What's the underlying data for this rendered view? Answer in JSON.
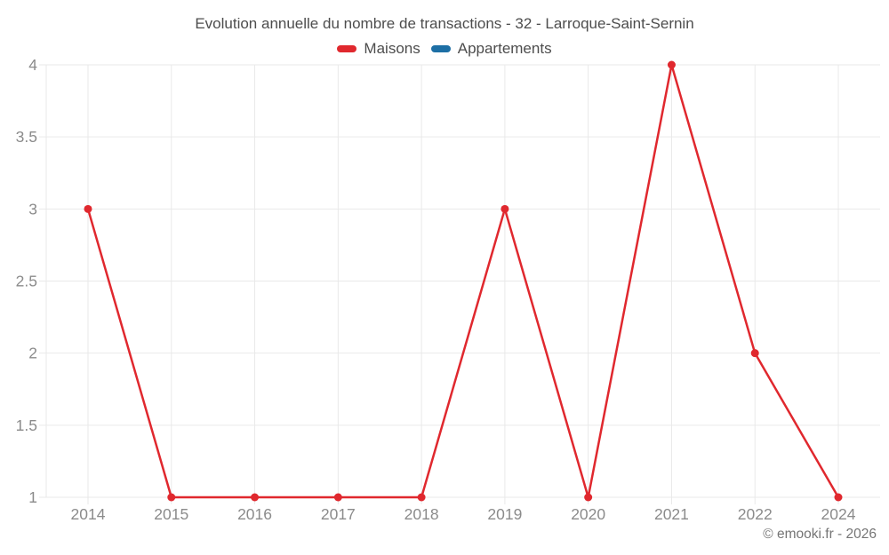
{
  "title": "Evolution annuelle du nombre de transactions - 32 - Larroque-Saint-Sernin",
  "watermark": "© emooki.fr - 2026",
  "legend": [
    {
      "label": "Maisons",
      "color": "#e0282e"
    },
    {
      "label": "Appartements",
      "color": "#1d6fa5"
    }
  ],
  "chart_data": {
    "type": "line",
    "title": "Evolution annuelle du nombre de transactions - 32 - Larroque-Saint-Sernin",
    "categories": [
      "2014",
      "2015",
      "2016",
      "2017",
      "2018",
      "2019",
      "2020",
      "2021",
      "2022",
      "2024"
    ],
    "series": [
      {
        "name": "Maisons",
        "color": "#e0282e",
        "values": [
          3,
          1,
          1,
          1,
          1,
          3,
          1,
          4,
          2,
          1
        ]
      },
      {
        "name": "Appartements",
        "color": "#1d6fa5",
        "values": []
      }
    ],
    "xlabel": "",
    "ylabel": "",
    "ylim": [
      1,
      4
    ],
    "yticks": [
      1,
      1.5,
      2,
      2.5,
      3,
      3.5,
      4
    ],
    "grid": true,
    "legend_position": "top",
    "grid_color": "#e9e9e9",
    "axis_text_color": "#8b8b8b"
  }
}
